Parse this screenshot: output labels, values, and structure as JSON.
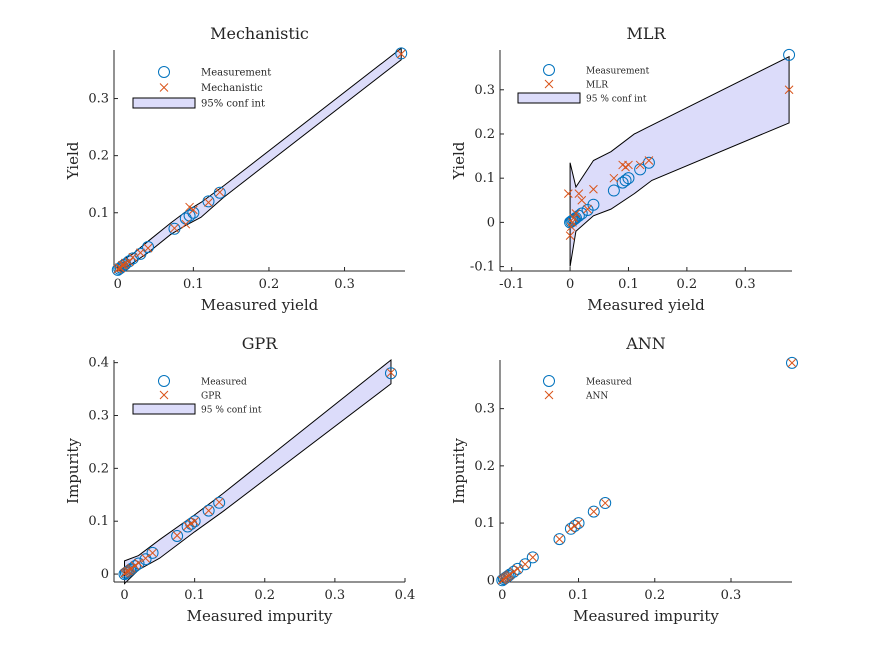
{
  "colors": {
    "measurement": "#0072BD",
    "prediction": "#D95319",
    "band_fill": "#DCDCFA",
    "band_edge": "#000000",
    "axis": "#262626"
  },
  "chart_data": [
    {
      "type": "scatter",
      "title": "Mechanistic",
      "xlabel": "Measured yield",
      "ylabel": "Yield",
      "xlim": [
        -0.005,
        0.38
      ],
      "ylim": [
        -0.002,
        0.385
      ],
      "xticks": [
        0,
        0.1,
        0.2,
        0.3
      ],
      "yticks": [
        0.1,
        0.2,
        0.3
      ],
      "xticklabels": [
        "0",
        "0.1",
        "0.2",
        "0.3"
      ],
      "yticklabels": [
        "0.1",
        "0.2",
        "0.3"
      ],
      "legend": {
        "position": "top-left",
        "entries": [
          "Measurement",
          "Mechanistic",
          "95% conf int"
        ]
      },
      "series": [
        {
          "name": "Measurement",
          "marker": "circle",
          "x": [
            0,
            0.002,
            0.004,
            0.006,
            0.008,
            0.01,
            0.015,
            0.02,
            0.03,
            0.04,
            0.075,
            0.09,
            0.095,
            0.1,
            0.12,
            0.135,
            0.375
          ],
          "y": [
            0,
            0.002,
            0.004,
            0.006,
            0.008,
            0.01,
            0.015,
            0.02,
            0.028,
            0.04,
            0.072,
            0.09,
            0.095,
            0.1,
            0.12,
            0.135,
            0.379
          ]
        },
        {
          "name": "Mechanistic",
          "marker": "x",
          "x": [
            0,
            0.002,
            0.004,
            0.006,
            0.008,
            0.01,
            0.015,
            0.02,
            0.03,
            0.04,
            0.075,
            0.09,
            0.095,
            0.1,
            0.12,
            0.135,
            0.375
          ],
          "y": [
            0.001,
            0.004,
            0.003,
            0.008,
            0.009,
            0.012,
            0.014,
            0.022,
            0.03,
            0.038,
            0.073,
            0.08,
            0.11,
            0.105,
            0.118,
            0.136,
            0.378
          ]
        },
        {
          "name": "95% conf int",
          "type": "band",
          "x": [
            0,
            0.02,
            0.04,
            0.07,
            0.09,
            0.11,
            0.14,
            0.375
          ],
          "lower": [
            -0.002,
            0.012,
            0.03,
            0.062,
            0.078,
            0.092,
            0.127,
            0.368
          ],
          "upper": [
            0.012,
            0.028,
            0.05,
            0.082,
            0.102,
            0.118,
            0.147,
            0.388
          ]
        }
      ]
    },
    {
      "type": "scatter",
      "title": "MLR",
      "xlabel": "Measured yield",
      "ylabel": "Yield",
      "xlim": [
        -0.12,
        0.38
      ],
      "ylim": [
        -0.11,
        0.39
      ],
      "xticks": [
        -0.1,
        0,
        0.1,
        0.2,
        0.3
      ],
      "yticks": [
        -0.1,
        0,
        0.1,
        0.2,
        0.3
      ],
      "xticklabels": [
        "-0.1",
        "0",
        "0.1",
        "0.2",
        "0.3"
      ],
      "yticklabels": [
        "-0.1",
        "0",
        "0.1",
        "0.2",
        "0.3"
      ],
      "legend": {
        "position": "top-left",
        "entries": [
          "Measurement",
          "MLR",
          "95 % conf int"
        ]
      },
      "series": [
        {
          "name": "Measurement",
          "marker": "circle",
          "x": [
            0,
            0.002,
            0.004,
            0.006,
            0.008,
            0.01,
            0.015,
            0.02,
            0.03,
            0.04,
            0.075,
            0.09,
            0.095,
            0.1,
            0.12,
            0.135,
            0.375
          ],
          "y": [
            0,
            0.002,
            0.004,
            0.006,
            0.008,
            0.01,
            0.015,
            0.02,
            0.028,
            0.04,
            0.072,
            0.09,
            0.095,
            0.1,
            0.12,
            0.135,
            0.379
          ]
        },
        {
          "name": "MLR",
          "marker": "x",
          "x": [
            -0.003,
            0,
            0.002,
            0.004,
            0.006,
            0.01,
            0.015,
            0.02,
            0.03,
            0.04,
            0.075,
            0.09,
            0.095,
            0.1,
            0.12,
            0.135,
            0.375
          ],
          "y": [
            0.065,
            -0.03,
            -0.01,
            0.0,
            0.01,
            0.02,
            0.065,
            0.05,
            0.03,
            0.075,
            0.1,
            0.13,
            0.125,
            0.13,
            0.13,
            0.14,
            0.3
          ]
        },
        {
          "name": "95 % conf int",
          "type": "band",
          "x": [
            0,
            0.01,
            0.04,
            0.07,
            0.11,
            0.14,
            0.375
          ],
          "lower": [
            -0.1,
            -0.02,
            0.015,
            0.03,
            0.065,
            0.095,
            0.225
          ],
          "upper": [
            0.135,
            0.08,
            0.14,
            0.16,
            0.2,
            0.22,
            0.375
          ]
        }
      ]
    },
    {
      "type": "scatter",
      "title": "GPR",
      "xlabel": "Measured impurity",
      "ylabel": "Impurity",
      "xlim": [
        -0.015,
        0.4
      ],
      "ylim": [
        -0.015,
        0.405
      ],
      "xticks": [
        0,
        0.1,
        0.2,
        0.3,
        0.4
      ],
      "yticks": [
        0,
        0.1,
        0.2,
        0.3,
        0.4
      ],
      "xticklabels": [
        "0",
        "0.1",
        "0.2",
        "0.3",
        "0.4"
      ],
      "yticklabels": [
        "0",
        "0.1",
        "0.2",
        "0.3",
        "0.4"
      ],
      "legend": {
        "position": "top-left",
        "entries": [
          "Measured",
          "GPR",
          "95 % conf int"
        ]
      },
      "series": [
        {
          "name": "Measured",
          "marker": "circle",
          "x": [
            0,
            0.002,
            0.004,
            0.006,
            0.008,
            0.01,
            0.015,
            0.02,
            0.03,
            0.04,
            0.075,
            0.09,
            0.095,
            0.1,
            0.12,
            0.135,
            0.38
          ],
          "y": [
            0,
            0.002,
            0.004,
            0.006,
            0.008,
            0.01,
            0.015,
            0.02,
            0.028,
            0.04,
            0.072,
            0.09,
            0.095,
            0.1,
            0.12,
            0.135,
            0.38
          ]
        },
        {
          "name": "GPR",
          "marker": "x",
          "x": [
            0,
            0.002,
            0.004,
            0.006,
            0.008,
            0.01,
            0.015,
            0.02,
            0.03,
            0.04,
            0.075,
            0.09,
            0.095,
            0.1,
            0.12,
            0.135,
            0.38
          ],
          "y": [
            0.001,
            0.003,
            0.005,
            0.006,
            0.009,
            0.011,
            0.016,
            0.021,
            0.03,
            0.04,
            0.073,
            0.091,
            0.096,
            0.1,
            0.12,
            0.136,
            0.381
          ]
        },
        {
          "name": "95 % conf int",
          "type": "band",
          "x": [
            0,
            0.02,
            0.05,
            0.1,
            0.14,
            0.38
          ],
          "lower": [
            -0.018,
            0.008,
            0.03,
            0.08,
            0.118,
            0.36
          ],
          "upper": [
            0.025,
            0.035,
            0.065,
            0.112,
            0.152,
            0.405
          ]
        }
      ]
    },
    {
      "type": "scatter",
      "title": "ANN",
      "xlabel": "Measured impurity",
      "ylabel": "Impurity",
      "xlim": [
        -0.003,
        0.38
      ],
      "ylim": [
        -0.003,
        0.385
      ],
      "xticks": [
        0,
        0.1,
        0.2,
        0.3
      ],
      "yticks": [
        0,
        0.1,
        0.2,
        0.3
      ],
      "xticklabels": [
        "0",
        "0.1",
        "0.2",
        "0.3"
      ],
      "yticklabels": [
        "0",
        "0.1",
        "0.2",
        "0.3"
      ],
      "legend": {
        "position": "top-left",
        "entries": [
          "Measured",
          "ANN"
        ]
      },
      "series": [
        {
          "name": "Measured",
          "marker": "circle",
          "x": [
            0,
            0.002,
            0.004,
            0.006,
            0.008,
            0.01,
            0.015,
            0.02,
            0.03,
            0.04,
            0.075,
            0.09,
            0.095,
            0.1,
            0.12,
            0.135,
            0.38
          ],
          "y": [
            0,
            0.002,
            0.004,
            0.006,
            0.008,
            0.01,
            0.015,
            0.02,
            0.028,
            0.04,
            0.072,
            0.09,
            0.095,
            0.1,
            0.12,
            0.135,
            0.38
          ]
        },
        {
          "name": "ANN",
          "marker": "x",
          "x": [
            0,
            0.002,
            0.004,
            0.006,
            0.008,
            0.01,
            0.015,
            0.02,
            0.03,
            0.04,
            0.075,
            0.09,
            0.095,
            0.1,
            0.12,
            0.135,
            0.38
          ],
          "y": [
            0,
            0.002,
            0.004,
            0.006,
            0.008,
            0.01,
            0.015,
            0.02,
            0.028,
            0.04,
            0.072,
            0.09,
            0.095,
            0.1,
            0.12,
            0.135,
            0.38
          ]
        }
      ]
    }
  ]
}
